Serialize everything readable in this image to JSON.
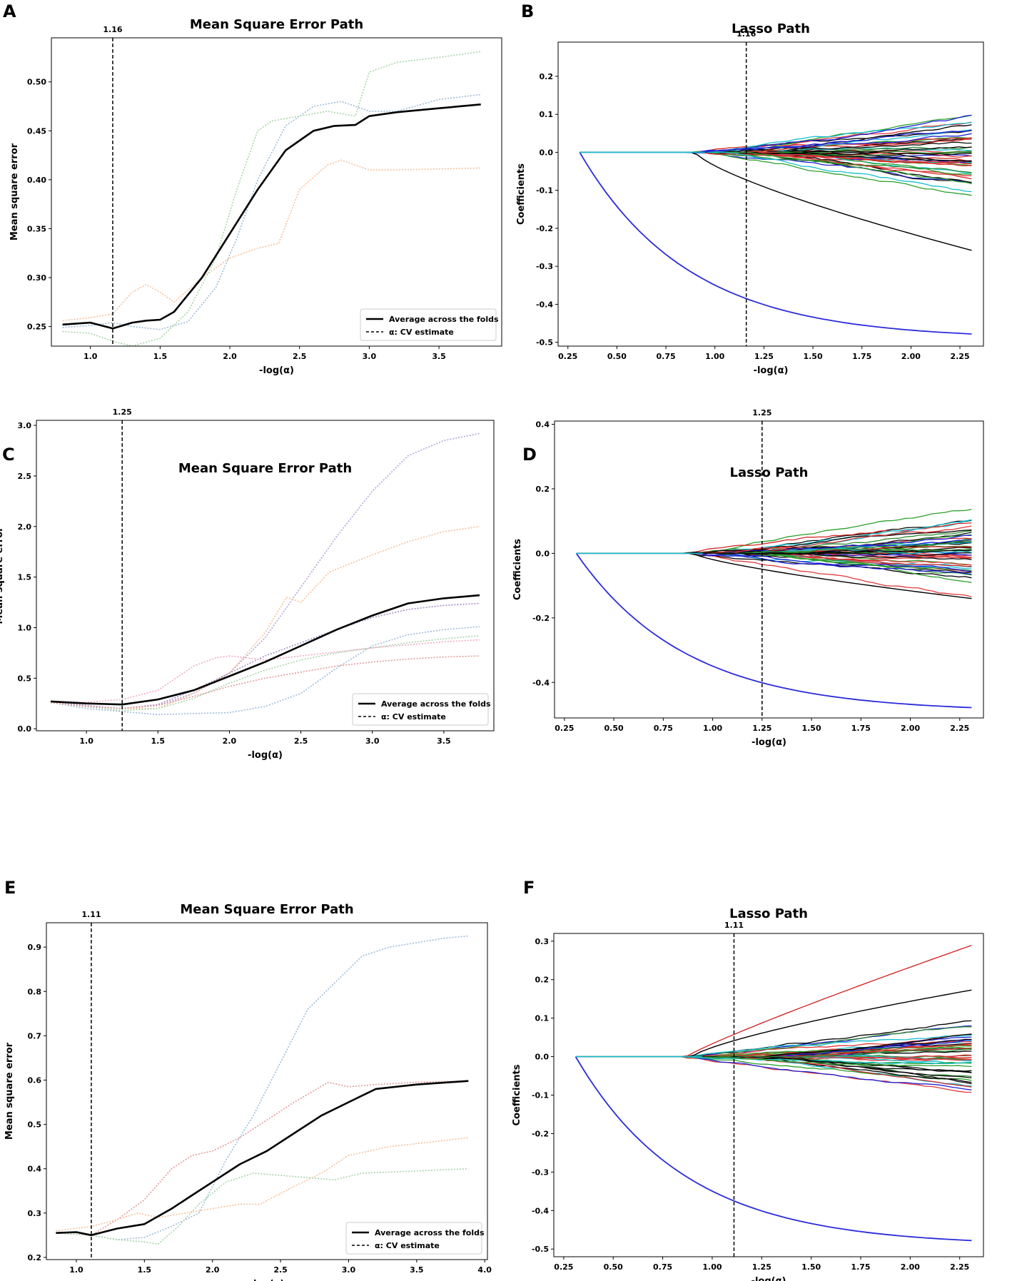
{
  "chart_data": [
    {
      "panel": "A",
      "type": "line",
      "title": "Mean Square Error Path",
      "xlabel": "-log(α)",
      "ylabel": "Mean square error",
      "xlim": [
        0.72,
        3.95
      ],
      "ylim": [
        0.23,
        0.545
      ],
      "xticks": [
        1.0,
        1.5,
        2.0,
        2.5,
        3.0,
        3.5
      ],
      "yticks": [
        0.25,
        0.3,
        0.35,
        0.4,
        0.45,
        0.5
      ],
      "vline": 1.16,
      "vline_label": "1.16",
      "legend": [
        "Average across the folds",
        "α: CV estimate"
      ],
      "series": [
        {
          "name": "fold-1",
          "color": "#9dbbd9",
          "dotted": true,
          "x": [
            0.8,
            1.0,
            1.16,
            1.3,
            1.5,
            1.7,
            1.9,
            2.05,
            2.2,
            2.4,
            2.6,
            2.8,
            3.0,
            3.2,
            3.5,
            3.8
          ],
          "y": [
            0.249,
            0.251,
            0.254,
            0.25,
            0.247,
            0.255,
            0.29,
            0.34,
            0.4,
            0.455,
            0.475,
            0.48,
            0.47,
            0.47,
            0.482,
            0.487
          ]
        },
        {
          "name": "fold-2",
          "color": "#f6c19a",
          "dotted": true,
          "x": [
            0.8,
            1.0,
            1.16,
            1.3,
            1.4,
            1.5,
            1.6,
            1.8,
            2.0,
            2.2,
            2.35,
            2.5,
            2.7,
            2.8,
            3.0,
            3.2,
            3.5,
            3.8
          ],
          "y": [
            0.256,
            0.259,
            0.263,
            0.285,
            0.293,
            0.285,
            0.275,
            0.3,
            0.32,
            0.33,
            0.335,
            0.39,
            0.415,
            0.42,
            0.41,
            0.41,
            0.411,
            0.412
          ]
        },
        {
          "name": "fold-3",
          "color": "#a8d5a8",
          "dotted": true,
          "x": [
            0.8,
            1.0,
            1.16,
            1.3,
            1.5,
            1.7,
            1.9,
            2.05,
            2.2,
            2.3,
            2.5,
            2.7,
            2.9,
            3.0,
            3.2,
            3.5,
            3.8
          ],
          "y": [
            0.245,
            0.243,
            0.235,
            0.23,
            0.238,
            0.265,
            0.32,
            0.39,
            0.45,
            0.46,
            0.465,
            0.47,
            0.465,
            0.51,
            0.52,
            0.525,
            0.531
          ]
        },
        {
          "name": "Average across the folds",
          "color": "#000000",
          "dotted": false,
          "width": 2.6,
          "x": [
            0.8,
            1.0,
            1.16,
            1.3,
            1.4,
            1.5,
            1.6,
            1.8,
            2.0,
            2.2,
            2.4,
            2.5,
            2.6,
            2.75,
            2.9,
            3.0,
            3.2,
            3.5,
            3.8
          ],
          "y": [
            0.252,
            0.254,
            0.248,
            0.254,
            0.256,
            0.257,
            0.265,
            0.3,
            0.345,
            0.39,
            0.43,
            0.44,
            0.45,
            0.455,
            0.456,
            0.465,
            0.469,
            0.473,
            0.477
          ]
        }
      ]
    },
    {
      "panel": "B",
      "type": "line",
      "title": "Lasso Path",
      "xlabel": "-log(α)",
      "ylabel": "Coefficients",
      "xlim": [
        0.2,
        2.37
      ],
      "ylim": [
        -0.51,
        0.29
      ],
      "xticks": [
        0.25,
        0.5,
        0.75,
        1.0,
        1.25,
        1.5,
        1.75,
        2.0,
        2.25
      ],
      "yticks": [
        -0.5,
        -0.4,
        -0.3,
        -0.2,
        -0.1,
        0.0,
        0.1,
        0.2
      ],
      "vline": 1.16,
      "vline_label": "1.16",
      "paths": {
        "x_start": 0.31,
        "x_end": 2.31,
        "blue_end": -0.478,
        "black_end": -0.258,
        "colors": [
          "#d62728",
          "#2ca02c",
          "#17becf",
          "#1f1fd6",
          "#000000",
          "#2e8b2e",
          "#e0383a",
          "#0b0b0b"
        ],
        "count": 44,
        "spread": 0.21
      }
    },
    {
      "panel": "C",
      "type": "line",
      "title": "Mean Square Error Path",
      "xlabel": "-log(α)",
      "ylabel": "Mean square error",
      "xlim": [
        0.65,
        3.85
      ],
      "ylim": [
        -0.02,
        3.05
      ],
      "xticks": [
        1.0,
        1.5,
        2.0,
        2.5,
        3.0,
        3.5
      ],
      "yticks": [
        0.0,
        0.5,
        1.0,
        1.5,
        2.0,
        2.5,
        3.0
      ],
      "vline": 1.25,
      "vline_label": "1.25",
      "legend": [
        "Average across the folds",
        "α: CV estimate"
      ],
      "series": [
        {
          "name": "fold-1",
          "color": "#b6a3dd",
          "dotted": true,
          "x": [
            0.75,
            1.0,
            1.25,
            1.5,
            1.75,
            2.0,
            2.25,
            2.5,
            2.75,
            3.0,
            3.25,
            3.5,
            3.75
          ],
          "y": [
            0.27,
            0.22,
            0.2,
            0.23,
            0.35,
            0.55,
            0.9,
            1.4,
            1.9,
            2.35,
            2.7,
            2.85,
            2.92
          ]
        },
        {
          "name": "fold-2",
          "color": "#f6c19a",
          "dotted": true,
          "x": [
            0.75,
            1.0,
            1.25,
            1.5,
            1.75,
            2.0,
            2.25,
            2.4,
            2.5,
            2.7,
            3.0,
            3.25,
            3.5,
            3.75
          ],
          "y": [
            0.26,
            0.22,
            0.2,
            0.2,
            0.35,
            0.55,
            0.95,
            1.3,
            1.25,
            1.55,
            1.72,
            1.85,
            1.95,
            2.0
          ]
        },
        {
          "name": "fold-3",
          "color": "#a68ec9",
          "dotted": true,
          "x": [
            0.75,
            1.0,
            1.25,
            1.5,
            1.75,
            2.0,
            2.25,
            2.5,
            2.75,
            3.0,
            3.25,
            3.5,
            3.75
          ],
          "y": [
            0.27,
            0.23,
            0.2,
            0.24,
            0.38,
            0.55,
            0.72,
            0.85,
            0.98,
            1.1,
            1.18,
            1.22,
            1.24
          ]
        },
        {
          "name": "fold-4",
          "color": "#9dbbd9",
          "dotted": true,
          "x": [
            0.75,
            1.0,
            1.25,
            1.5,
            1.75,
            2.0,
            2.25,
            2.5,
            2.75,
            3.0,
            3.25,
            3.5,
            3.75
          ],
          "y": [
            0.26,
            0.2,
            0.17,
            0.14,
            0.15,
            0.16,
            0.22,
            0.35,
            0.6,
            0.82,
            0.93,
            0.98,
            1.01
          ]
        },
        {
          "name": "fold-5",
          "color": "#a8d5a8",
          "dotted": true,
          "x": [
            0.75,
            1.0,
            1.25,
            1.5,
            1.75,
            2.0,
            2.25,
            2.5,
            2.75,
            3.0,
            3.25,
            3.5,
            3.75
          ],
          "y": [
            0.26,
            0.22,
            0.18,
            0.2,
            0.3,
            0.45,
            0.58,
            0.68,
            0.75,
            0.8,
            0.85,
            0.89,
            0.92
          ]
        },
        {
          "name": "fold-6",
          "color": "#f0a9c8",
          "dotted": true,
          "x": [
            0.75,
            1.0,
            1.25,
            1.5,
            1.75,
            1.9,
            2.0,
            2.25,
            2.5,
            2.75,
            3.0,
            3.25,
            3.5,
            3.75
          ],
          "y": [
            0.27,
            0.26,
            0.29,
            0.38,
            0.62,
            0.7,
            0.72,
            0.68,
            0.72,
            0.76,
            0.8,
            0.83,
            0.86,
            0.88
          ]
        },
        {
          "name": "fold-7",
          "color": "#e39a9a",
          "dotted": true,
          "x": [
            0.75,
            1.0,
            1.25,
            1.5,
            1.75,
            2.0,
            2.25,
            2.5,
            2.75,
            3.0,
            3.25,
            3.5,
            3.75
          ],
          "y": [
            0.26,
            0.22,
            0.2,
            0.23,
            0.32,
            0.42,
            0.5,
            0.56,
            0.62,
            0.66,
            0.69,
            0.71,
            0.72
          ]
        },
        {
          "name": "Average across the folds",
          "color": "#000000",
          "dotted": false,
          "width": 2.6,
          "x": [
            0.75,
            1.0,
            1.25,
            1.5,
            1.75,
            2.0,
            2.25,
            2.5,
            2.75,
            3.0,
            3.25,
            3.5,
            3.75
          ],
          "y": [
            0.27,
            0.25,
            0.24,
            0.29,
            0.38,
            0.52,
            0.66,
            0.82,
            0.98,
            1.12,
            1.24,
            1.29,
            1.32
          ]
        }
      ]
    },
    {
      "panel": "D",
      "type": "line",
      "title": "Lasso Path",
      "xlabel": "-log(α)",
      "ylabel": "Coefficients",
      "xlim": [
        0.2,
        2.37
      ],
      "ylim": [
        -0.51,
        0.41
      ],
      "xticks": [
        0.25,
        0.5,
        0.75,
        1.0,
        1.25,
        1.5,
        1.75,
        2.0,
        2.25
      ],
      "yticks": [
        -0.4,
        -0.2,
        0.0,
        0.2,
        0.4
      ],
      "vline": 1.25,
      "vline_label": "1.25",
      "paths": {
        "x_start": 0.31,
        "x_end": 2.31,
        "blue_end": -0.478,
        "black_end": -0.14,
        "colors": [
          "#d62728",
          "#2ca02c",
          "#17becf",
          "#1f1fd6",
          "#000000",
          "#2e8b2e",
          "#e0383a",
          "#0b0b0b"
        ],
        "count": 48,
        "spread": 0.24
      }
    },
    {
      "panel": "E",
      "type": "line",
      "title": "Mean Square Error Path",
      "xlabel": "-log(α)",
      "ylabel": "Mean square error",
      "xlim": [
        0.78,
        4.02
      ],
      "ylim": [
        0.195,
        0.955
      ],
      "xticks": [
        1.0,
        1.5,
        2.0,
        2.5,
        3.0,
        3.5,
        4.0
      ],
      "yticks": [
        0.2,
        0.3,
        0.4,
        0.5,
        0.6,
        0.7,
        0.8,
        0.9
      ],
      "vline": 1.11,
      "vline_label": "1.11",
      "legend": [
        "Average across the folds",
        "α: CV estimate"
      ],
      "series": [
        {
          "name": "fold-1",
          "color": "#9dbbd9",
          "dotted": true,
          "x": [
            0.85,
            1.11,
            1.3,
            1.5,
            1.7,
            1.9,
            2.1,
            2.3,
            2.5,
            2.7,
            2.9,
            3.1,
            3.3,
            3.5,
            3.7,
            3.88
          ],
          "y": [
            0.255,
            0.25,
            0.24,
            0.245,
            0.27,
            0.3,
            0.42,
            0.52,
            0.64,
            0.76,
            0.82,
            0.88,
            0.9,
            0.91,
            0.92,
            0.925
          ]
        },
        {
          "name": "fold-2",
          "color": "#e39a9a",
          "dotted": true,
          "x": [
            0.85,
            1.11,
            1.3,
            1.5,
            1.7,
            1.85,
            2.0,
            2.2,
            2.4,
            2.6,
            2.85,
            3.0,
            3.2,
            3.5,
            3.88
          ],
          "y": [
            0.255,
            0.25,
            0.285,
            0.33,
            0.4,
            0.43,
            0.44,
            0.47,
            0.51,
            0.55,
            0.595,
            0.585,
            0.59,
            0.595,
            0.598
          ]
        },
        {
          "name": "fold-3",
          "color": "#f6c19a",
          "dotted": true,
          "x": [
            0.85,
            1.11,
            1.3,
            1.45,
            1.6,
            1.8,
            2.0,
            2.2,
            2.35,
            2.6,
            2.8,
            3.0,
            3.3,
            3.6,
            3.88
          ],
          "y": [
            0.26,
            0.27,
            0.285,
            0.3,
            0.29,
            0.3,
            0.31,
            0.32,
            0.32,
            0.36,
            0.39,
            0.43,
            0.45,
            0.46,
            0.47
          ]
        },
        {
          "name": "fold-4",
          "color": "#a8d5a8",
          "dotted": true,
          "x": [
            0.85,
            1.11,
            1.3,
            1.5,
            1.6,
            1.75,
            1.9,
            2.1,
            2.3,
            2.5,
            2.7,
            2.9,
            3.1,
            3.5,
            3.88
          ],
          "y": [
            0.255,
            0.25,
            0.24,
            0.235,
            0.23,
            0.27,
            0.32,
            0.37,
            0.39,
            0.385,
            0.38,
            0.375,
            0.39,
            0.395,
            0.4
          ]
        },
        {
          "name": "Average across the folds",
          "color": "#000000",
          "dotted": false,
          "width": 2.6,
          "x": [
            0.85,
            1.0,
            1.11,
            1.3,
            1.5,
            1.7,
            1.85,
            2.0,
            2.2,
            2.4,
            2.6,
            2.8,
            3.0,
            3.2,
            3.5,
            3.88
          ],
          "y": [
            0.255,
            0.257,
            0.25,
            0.265,
            0.275,
            0.31,
            0.34,
            0.37,
            0.41,
            0.44,
            0.48,
            0.52,
            0.55,
            0.58,
            0.59,
            0.598
          ]
        }
      ]
    },
    {
      "panel": "F",
      "type": "line",
      "title": "Lasso Path",
      "xlabel": "-log(α)",
      "ylabel": "Coefficients",
      "xlim": [
        0.2,
        2.37
      ],
      "ylim": [
        -0.52,
        0.32
      ],
      "xticks": [
        0.25,
        0.5,
        0.75,
        1.0,
        1.25,
        1.5,
        1.75,
        2.0,
        2.25
      ],
      "yticks": [
        -0.5,
        -0.4,
        -0.3,
        -0.2,
        -0.1,
        0.0,
        0.1,
        0.2,
        0.3
      ],
      "vline": 1.11,
      "vline_label": "1.11",
      "paths": {
        "x_start": 0.31,
        "x_end": 2.31,
        "blue_end": -0.478,
        "black_end": 0.173,
        "red_end": 0.289,
        "colors": [
          "#d62728",
          "#2ca02c",
          "#17becf",
          "#1f1fd6",
          "#000000",
          "#2e8b2e",
          "#e0383a",
          "#0b0b0b"
        ],
        "count": 46,
        "spread": 0.17
      }
    }
  ]
}
